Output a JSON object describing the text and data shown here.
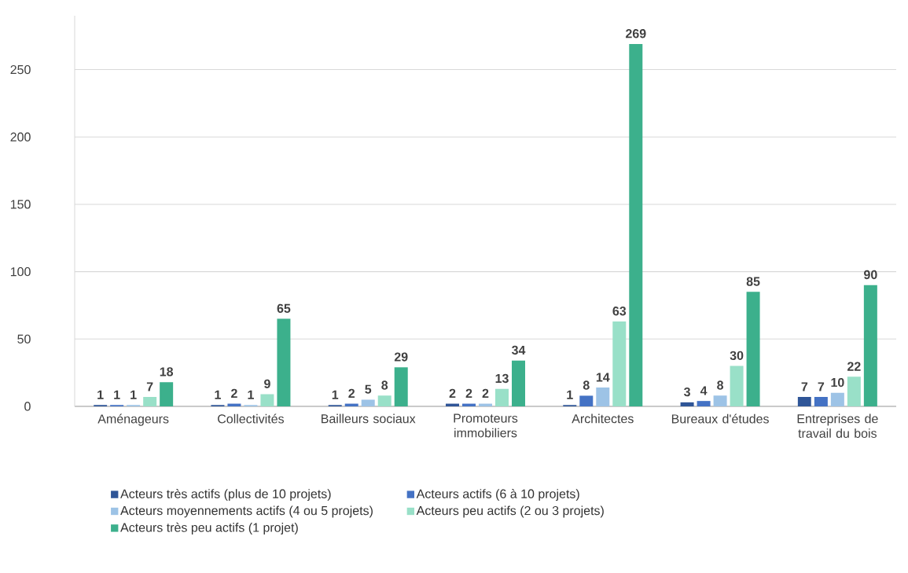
{
  "chart_data": {
    "type": "bar",
    "categories": [
      "Aménageurs",
      "Collectivités",
      "Bailleurs sociaux",
      "Promoteurs immobiliers",
      "Architectes",
      "Bureaux d'études",
      "Entreprises de travail du bois"
    ],
    "series": [
      {
        "name": "Acteurs très actifs (plus de 10 projets)",
        "color": "#2f5597",
        "values": [
          1,
          1,
          1,
          2,
          1,
          3,
          7
        ]
      },
      {
        "name": "Acteurs actifs (6 à 10 projets)",
        "color": "#4472c4",
        "values": [
          1,
          2,
          2,
          2,
          8,
          4,
          7
        ]
      },
      {
        "name": "Acteurs moyennements actifs (4 ou 5 projets)",
        "color": "#9dc3e6",
        "values": [
          1,
          1,
          5,
          2,
          14,
          8,
          10
        ]
      },
      {
        "name": "Acteurs peu actifs (2 ou 3 projets)",
        "color": "#99e0c8",
        "values": [
          7,
          9,
          8,
          13,
          63,
          30,
          22
        ]
      },
      {
        "name": "Acteurs très peu actifs (1 projet)",
        "color": "#3cb08c",
        "values": [
          18,
          65,
          29,
          34,
          269,
          85,
          90
        ]
      }
    ],
    "ylim": [
      0,
      290
    ],
    "yticks": [
      0,
      50,
      100,
      150,
      200,
      250
    ],
    "grid": "y",
    "legend": "bottom",
    "data_labels": true
  }
}
